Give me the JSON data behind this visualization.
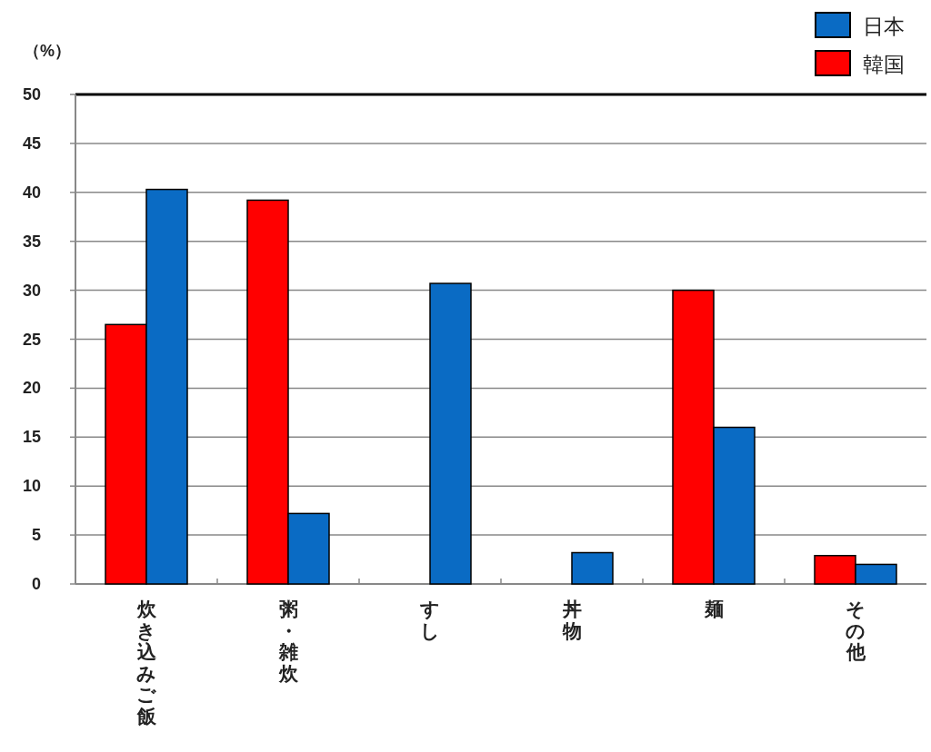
{
  "chart_data": {
    "type": "bar",
    "ylabel": "（%）",
    "categories": [
      "炊き込みご飯",
      "粥・雑炊",
      "すし",
      "丼物",
      "麺",
      "その他"
    ],
    "series": [
      {
        "name": "韓国",
        "color": "#ff0000",
        "values": [
          26.5,
          39.2,
          null,
          null,
          30.0,
          2.9
        ]
      },
      {
        "name": "日本",
        "color": "#0a6bc4",
        "values": [
          40.3,
          7.2,
          30.7,
          3.2,
          16.0,
          2.0
        ]
      }
    ],
    "ylim": [
      0,
      50
    ],
    "yticks": [
      0,
      5,
      10,
      15,
      20,
      25,
      30,
      35,
      40,
      45,
      50
    ],
    "grid": "y",
    "legend": "top right"
  }
}
